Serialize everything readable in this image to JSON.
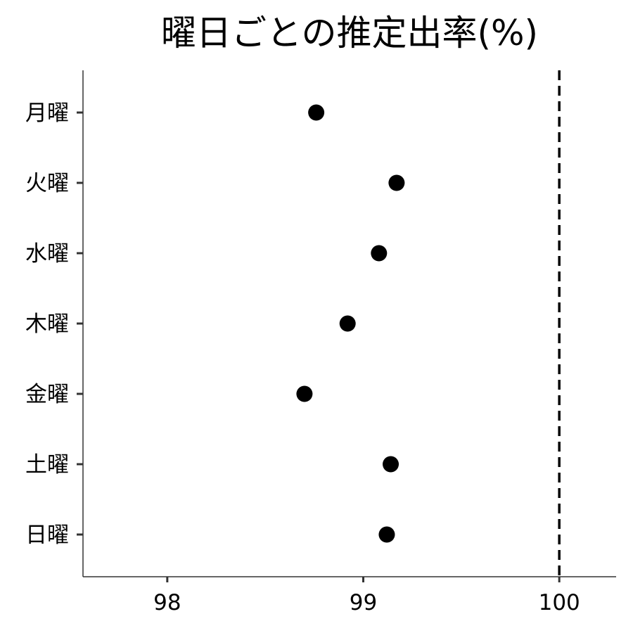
{
  "chart_data": {
    "type": "scatter",
    "title": "曜日ごとの推定出率(%)",
    "xlabel": "",
    "ylabel": "",
    "categories": [
      "月曜",
      "火曜",
      "水曜",
      "木曜",
      "金曜",
      "土曜",
      "日曜"
    ],
    "values": [
      98.76,
      99.17,
      99.08,
      98.92,
      98.7,
      99.14,
      99.12
    ],
    "xlim": [
      97.57,
      100.29
    ],
    "xticks": [
      98,
      99,
      100
    ],
    "xtick_labels": [
      "98",
      "99",
      "100"
    ],
    "reference_line": {
      "x": 100,
      "style": "dashed",
      "color": "#000000"
    },
    "grid": false,
    "legend": "none",
    "point_color": "#000000",
    "axis_color": "#333333"
  }
}
